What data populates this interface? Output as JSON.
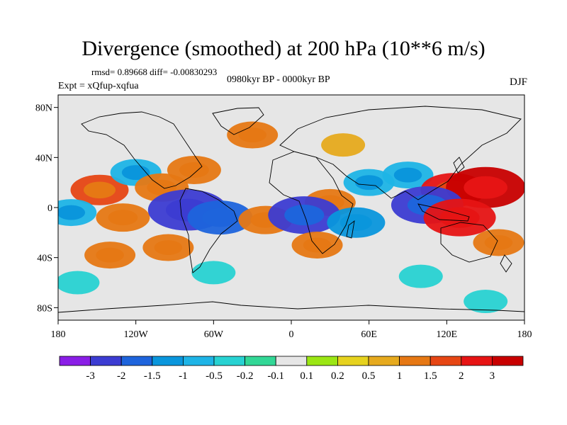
{
  "header": {
    "title": "Divergence (smoothed) at 200 hPa (10**6 m/s)",
    "stats": "rmsd= 0.89668 diff= -0.00830293",
    "period": "0980kyr BP - 0000kyr BP",
    "experiment": "Expt = xQfup-xqfua",
    "season": "DJF"
  },
  "chart_data": {
    "type": "heatmap",
    "title": "Divergence (smoothed) at 200 hPa (10**6 m/s)",
    "xlabel": "",
    "ylabel": "",
    "xlim": [
      -180,
      180
    ],
    "ylim": [
      -90,
      90
    ],
    "x_ticks": [
      {
        "value": -180,
        "label": "180"
      },
      {
        "value": -120,
        "label": "120W"
      },
      {
        "value": -60,
        "label": "60W"
      },
      {
        "value": 0,
        "label": "0"
      },
      {
        "value": 60,
        "label": "60E"
      },
      {
        "value": 120,
        "label": "120E"
      },
      {
        "value": 180,
        "label": "180"
      }
    ],
    "y_ticks": [
      {
        "value": 80,
        "label": "80N"
      },
      {
        "value": 40,
        "label": "40N"
      },
      {
        "value": 0,
        "label": "0"
      },
      {
        "value": -40,
        "label": "40S"
      },
      {
        "value": -80,
        "label": "80S"
      }
    ],
    "colorbar": {
      "labels": [
        "-3",
        "-2",
        "-1.5",
        "-1",
        "-0.5",
        "-0.2",
        "-0.1",
        "0.1",
        "0.2",
        "0.5",
        "1",
        "1.5",
        "2",
        "3"
      ],
      "colors": [
        "#8a1ee6",
        "#3c3cd2",
        "#1e64dc",
        "#0a96dc",
        "#1eb4e6",
        "#28d2d2",
        "#32d796",
        "#e6e6e6",
        "#9be614",
        "#e6d21e",
        "#e6aa1e",
        "#e67814",
        "#e64614",
        "#e61414",
        "#c80000"
      ]
    },
    "features": [
      {
        "lon": -148,
        "lat": 14,
        "value": 1.5
      },
      {
        "lon": -120,
        "lat": 28,
        "value": -1.0
      },
      {
        "lon": -100,
        "lat": 16,
        "value": 1.2
      },
      {
        "lon": -75,
        "lat": 30,
        "value": 1.2
      },
      {
        "lon": -170,
        "lat": -4,
        "value": -1.0
      },
      {
        "lon": -130,
        "lat": -8,
        "value": 1.2
      },
      {
        "lon": -80,
        "lat": -2,
        "value": -3.0
      },
      {
        "lon": -55,
        "lat": -8,
        "value": -2.0
      },
      {
        "lon": -95,
        "lat": -32,
        "value": 1.0
      },
      {
        "lon": -140,
        "lat": -38,
        "value": 1.0
      },
      {
        "lon": -20,
        "lat": -10,
        "value": 1.2
      },
      {
        "lon": 30,
        "lat": 4,
        "value": 1.0
      },
      {
        "lon": 10,
        "lat": -6,
        "value": -2.5
      },
      {
        "lon": 50,
        "lat": -12,
        "value": -1.5
      },
      {
        "lon": 20,
        "lat": -30,
        "value": 1.0
      },
      {
        "lon": 60,
        "lat": 20,
        "value": -1.0
      },
      {
        "lon": 90,
        "lat": 26,
        "value": -1.0
      },
      {
        "lon": 125,
        "lat": 14,
        "value": 2.0
      },
      {
        "lon": 150,
        "lat": 16,
        "value": 3.0
      },
      {
        "lon": 105,
        "lat": 2,
        "value": -2.5
      },
      {
        "lon": 130,
        "lat": -8,
        "value": 2.5
      },
      {
        "lon": 160,
        "lat": -28,
        "value": 1.0
      },
      {
        "lon": 40,
        "lat": 50,
        "value": 0.5
      },
      {
        "lon": -30,
        "lat": 58,
        "value": 1.0
      },
      {
        "lon": -60,
        "lat": -52,
        "value": -0.5
      },
      {
        "lon": 100,
        "lat": -55,
        "value": -0.5
      },
      {
        "lon": 150,
        "lat": -75,
        "value": -0.5
      },
      {
        "lon": -165,
        "lat": -60,
        "value": -0.5
      }
    ]
  }
}
